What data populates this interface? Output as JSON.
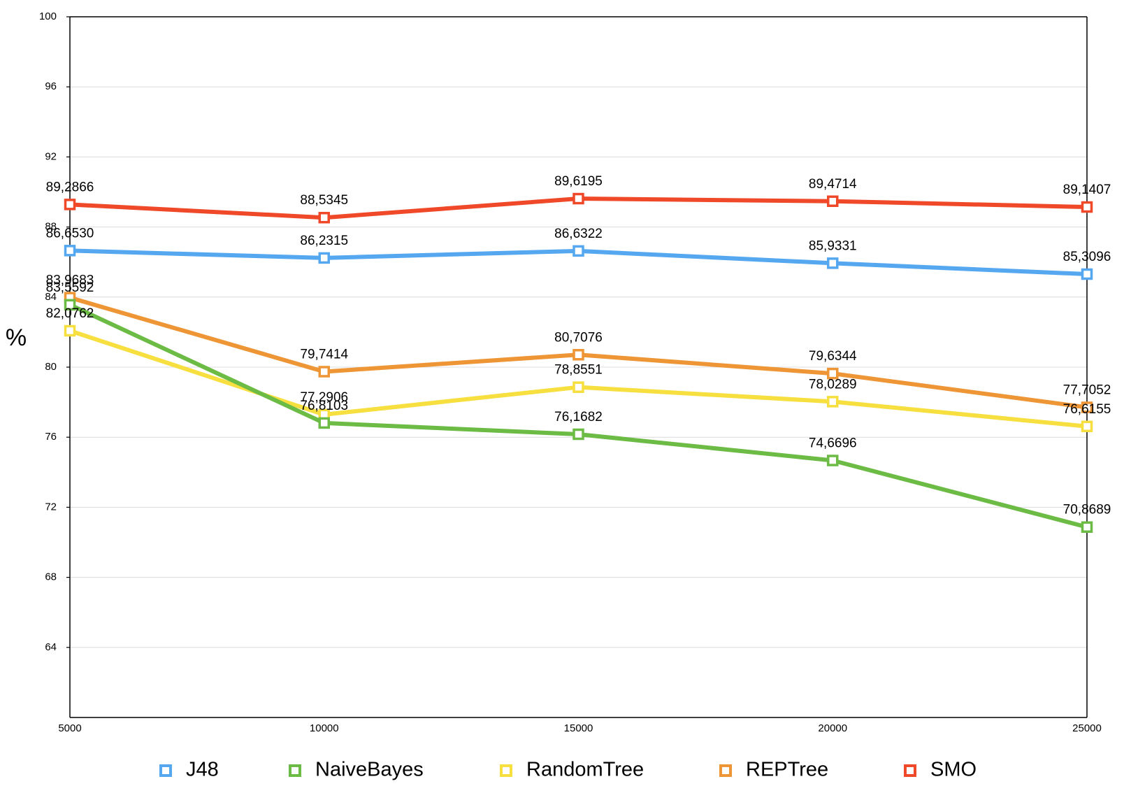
{
  "chart_data": {
    "type": "line",
    "title": "",
    "xlabel": "",
    "ylabel": "%",
    "x": [
      5000,
      10000,
      15000,
      20000,
      25000
    ],
    "xlim": [
      5000,
      25000
    ],
    "ylim": [
      60,
      100
    ],
    "yticks": [
      64,
      68,
      72,
      76,
      80,
      84,
      88,
      92,
      96,
      100
    ],
    "grid": true,
    "legend_position": "bottom",
    "series": [
      {
        "name": "J48",
        "color": "#55a8f0",
        "values": [
          86.653,
          86.2315,
          86.6322,
          85.9331,
          85.3096
        ],
        "labels": [
          "86,6530",
          "86,2315",
          "86,6322",
          "85,9331",
          "85,3096"
        ]
      },
      {
        "name": "NaiveBayes",
        "color": "#6cbb45",
        "values": [
          83.5592,
          76.8103,
          76.1682,
          74.6696,
          70.8689
        ],
        "labels": [
          "83,5592",
          "76,8103",
          "76,1682",
          "74,6696",
          "70,8689"
        ]
      },
      {
        "name": "RandomTree",
        "color": "#f6df3e",
        "values": [
          82.0762,
          77.2906,
          78.8551,
          78.0289,
          76.6155
        ],
        "labels": [
          "82,0762",
          "77,2906",
          "78,8551",
          "78,0289",
          "76,6155"
        ]
      },
      {
        "name": "REPTree",
        "color": "#ee9535",
        "values": [
          83.9683,
          79.7414,
          80.7076,
          79.6344,
          77.7052
        ],
        "labels": [
          "83,9683",
          "79,7414",
          "80,7076",
          "79,6344",
          "77,7052"
        ]
      },
      {
        "name": "SMO",
        "color": "#f0492a",
        "values": [
          89.2866,
          88.5345,
          89.6195,
          89.4714,
          89.1407
        ],
        "labels": [
          "89,2866",
          "88,5345",
          "89,6195",
          "89,4714",
          "89,1407"
        ]
      }
    ]
  }
}
